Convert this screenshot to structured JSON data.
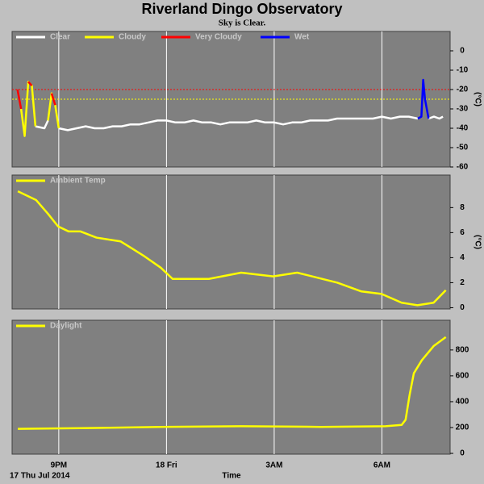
{
  "title": "Riverland Dingo Observatory",
  "subtitle": "Sky is Clear.",
  "date_label": "17 Thu Jul 2014",
  "x_label": "Time",
  "chart_data": [
    {
      "type": "line",
      "ylabel": "(°C)",
      "x": [
        19.85,
        19.95,
        20.05,
        20.15,
        20.25,
        20.35,
        20.6,
        20.7,
        20.8,
        20.9,
        21.0,
        21.25,
        21.5,
        21.75,
        22.0,
        22.25,
        22.5,
        22.75,
        23.0,
        23.25,
        23.5,
        23.75,
        24.0,
        24.25,
        24.5,
        24.75,
        25.0,
        25.25,
        25.5,
        25.75,
        26.0,
        26.25,
        26.5,
        26.75,
        27.0,
        27.25,
        27.5,
        27.75,
        28.0,
        28.25,
        28.5,
        28.75,
        29.0,
        29.25,
        29.5,
        29.75,
        30.0,
        30.25,
        30.5,
        30.75,
        31.0,
        31.1,
        31.15,
        31.2,
        31.3,
        31.45,
        31.6,
        31.7
      ],
      "series": [
        {
          "name": "Clear",
          "color": "#ffffff",
          "values": [
            null,
            null,
            null,
            null,
            null,
            -39,
            -40,
            -36,
            null,
            null,
            -40,
            -41,
            -40,
            -39,
            -40,
            -40,
            -39,
            -39,
            -38,
            -38,
            -37,
            -36,
            -36,
            -37,
            -37,
            -36,
            -37,
            -37,
            -38,
            -37,
            -37,
            -37,
            -36,
            -37,
            -37,
            -38,
            -37,
            -37,
            -36,
            -36,
            -36,
            -35,
            -35,
            -35,
            -35,
            -35,
            -34,
            -35,
            -34,
            -34,
            -35,
            null,
            null,
            null,
            -35,
            -34,
            -35,
            -34
          ]
        },
        {
          "name": "Cloudy",
          "color": "#ffff00",
          "values": [
            null,
            -30,
            -44,
            -16,
            -18,
            -39,
            null,
            -36,
            -22,
            -28,
            -40,
            null,
            null,
            null,
            null,
            null,
            null,
            null,
            null,
            null,
            null,
            null,
            null,
            null,
            null,
            null,
            null,
            null,
            null,
            null,
            null,
            null,
            null,
            null,
            null,
            null,
            null,
            null,
            null,
            null,
            null,
            null,
            null,
            null,
            null,
            null,
            null,
            null,
            null,
            null,
            null,
            null,
            null,
            null,
            null,
            null,
            null,
            null
          ]
        },
        {
          "name": "Very Cloudy",
          "color": "#ff0000",
          "values": [
            -20,
            -30,
            null,
            -16,
            -18,
            null,
            null,
            null,
            -22,
            -28,
            null,
            null,
            null,
            null,
            null,
            null,
            null,
            null,
            null,
            null,
            null,
            null,
            null,
            null,
            null,
            null,
            null,
            null,
            null,
            null,
            null,
            null,
            null,
            null,
            null,
            null,
            null,
            null,
            null,
            null,
            null,
            null,
            null,
            null,
            null,
            null,
            null,
            null,
            null,
            null,
            null,
            null,
            null,
            null,
            null,
            null,
            null,
            null
          ]
        },
        {
          "name": "Wet",
          "color": "#0000ff",
          "values": [
            null,
            null,
            null,
            null,
            null,
            null,
            null,
            null,
            null,
            null,
            null,
            null,
            null,
            null,
            null,
            null,
            null,
            null,
            null,
            null,
            null,
            null,
            null,
            null,
            null,
            null,
            null,
            null,
            null,
            null,
            null,
            null,
            null,
            null,
            null,
            null,
            null,
            null,
            null,
            null,
            null,
            null,
            null,
            null,
            null,
            null,
            null,
            null,
            null,
            null,
            -35,
            -34,
            -15,
            -25,
            -35,
            null,
            null,
            null
          ]
        }
      ],
      "thresholds": [
        {
          "value": -20,
          "color": "#ff0000"
        },
        {
          "value": -25,
          "color": "#ffff00"
        }
      ],
      "xlim": [
        19.7,
        31.9
      ],
      "xticks": [
        {
          "value": 21,
          "label": "9PM"
        },
        {
          "value": 24,
          "label": "18 Fri"
        },
        {
          "value": 27,
          "label": "3AM"
        },
        {
          "value": 30,
          "label": "6AM"
        }
      ],
      "ylim": [
        -60,
        10
      ],
      "yticks": [
        0,
        -10,
        -20,
        -30,
        -40,
        -50,
        -60
      ]
    },
    {
      "type": "line",
      "ylabel": "(°C)",
      "x": [
        19.86,
        20.37,
        20.7,
        20.98,
        21.27,
        21.6,
        22.05,
        22.72,
        23.06,
        23.39,
        23.84,
        24.17,
        25.18,
        26.08,
        26.97,
        27.64,
        28.76,
        29.43,
        29.99,
        30.55,
        30.99,
        31.44,
        31.78
      ],
      "series": [
        {
          "name": "Ambient Temp",
          "color": "#ffff00",
          "values": [
            9.3,
            8.6,
            7.5,
            6.5,
            6.1,
            6.1,
            5.6,
            5.3,
            4.7,
            4.1,
            3.2,
            2.3,
            2.3,
            2.8,
            2.5,
            2.8,
            2.0,
            1.3,
            1.1,
            0.4,
            0.2,
            0.4,
            1.4
          ]
        }
      ],
      "xlim": [
        19.7,
        31.9
      ],
      "xticks": [
        {
          "value": 21,
          "label": "9PM"
        },
        {
          "value": 24,
          "label": "18 Fri"
        },
        {
          "value": 27,
          "label": "3AM"
        },
        {
          "value": 30,
          "label": "6AM"
        }
      ],
      "ylim": [
        -0.1,
        10.6
      ],
      "yticks": [
        0,
        2,
        4,
        6,
        8
      ]
    },
    {
      "type": "line",
      "x": [
        19.86,
        21.6,
        23.84,
        26.08,
        28.31,
        30.1,
        30.55,
        30.66,
        30.77,
        30.89,
        31.11,
        31.44,
        31.78
      ],
      "series": [
        {
          "name": "Daylight",
          "color": "#ffff00",
          "values": [
            190,
            195,
            205,
            210,
            205,
            210,
            220,
            260,
            450,
            620,
            720,
            830,
            900
          ]
        }
      ],
      "xlim": [
        19.7,
        31.9
      ],
      "xticks": [
        {
          "value": 21,
          "label": "9PM"
        },
        {
          "value": 24,
          "label": "18 Fri"
        },
        {
          "value": 27,
          "label": "3AM"
        },
        {
          "value": 30,
          "label": "6AM"
        }
      ],
      "ylim": [
        -6,
        1030
      ],
      "yticks": [
        0,
        200,
        400,
        600,
        800
      ]
    }
  ]
}
